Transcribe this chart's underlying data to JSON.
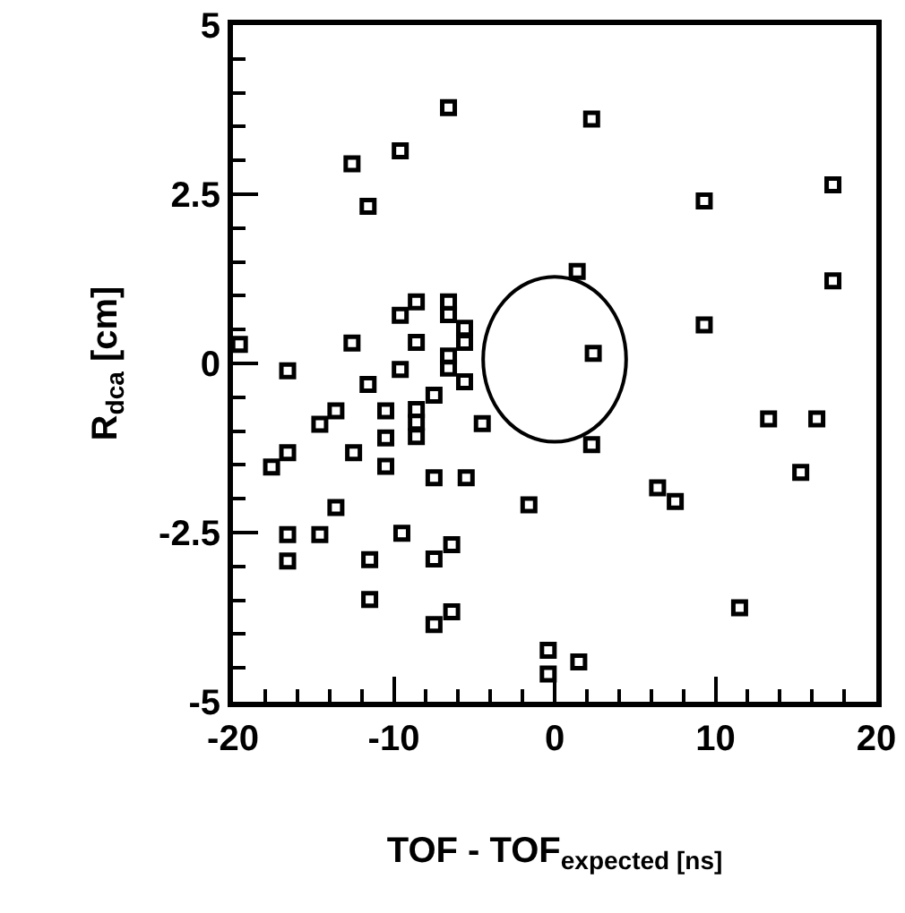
{
  "chart_data": {
    "type": "scatter",
    "xlabel": "TOF - TOF$_{expected [ns]}$",
    "ylabel": "R$_{dca}$ [cm]",
    "xlim": [
      -20,
      20
    ],
    "ylim": [
      -5,
      5
    ],
    "xticks": [
      -20,
      {
        "value": -18,
        "label": null
      },
      {
        "value": -16,
        "label": null
      },
      {
        "value": -14,
        "label": null
      },
      {
        "value": -12,
        "label": null
      },
      -10,
      {
        "value": -8,
        "label": null
      },
      {
        "value": -6,
        "label": null
      },
      {
        "value": -4,
        "label": null
      },
      {
        "value": -2,
        "label": null
      },
      0,
      {
        "value": 2,
        "label": null
      },
      {
        "value": 4,
        "label": null
      },
      {
        "value": 6,
        "label": null
      },
      {
        "value": 8,
        "label": null
      },
      10,
      {
        "value": 12,
        "label": null
      },
      {
        "value": 14,
        "label": null
      },
      {
        "value": 16,
        "label": null
      },
      {
        "value": 18,
        "label": null
      },
      20
    ],
    "yticks": [
      -5,
      {
        "value": -4.5,
        "label": null
      },
      {
        "value": -4,
        "label": null
      },
      {
        "value": -3.5,
        "label": null
      },
      {
        "value": -3,
        "label": null
      },
      -2.5,
      {
        "value": -2,
        "label": null
      },
      {
        "value": -1.5,
        "label": null
      },
      {
        "value": -1,
        "label": null
      },
      {
        "value": -0.5,
        "label": null
      },
      0,
      {
        "value": 0.5,
        "label": null
      },
      {
        "value": 1,
        "label": null
      },
      {
        "value": 1.5,
        "label": null
      },
      {
        "value": 2,
        "label": null
      },
      2.5,
      {
        "value": 3,
        "label": null
      },
      {
        "value": 3.5,
        "label": null
      },
      {
        "value": 4,
        "label": null
      },
      {
        "value": 4.5,
        "label": null
      },
      5
    ],
    "grid": false,
    "series": [
      {
        "type": "scatter",
        "marker": "square",
        "color": "#000000",
        "x": [
          -6.6,
          -9.6,
          -12.6,
          -11.6,
          -8.6,
          -9.6,
          -6.6,
          -6.6,
          -5.6,
          -5.6,
          -19.6,
          -12.6,
          -8.6,
          -6.6,
          -6.6,
          -16.6,
          -9.6,
          -11.6,
          -5.6,
          -7.5,
          -13.6,
          -14.6,
          -10.5,
          -8.6,
          -8.6,
          -8.6,
          -10.5,
          -4.5,
          -16.6,
          -17.6,
          -12.5,
          -10.5,
          -7.5,
          -5.5,
          -13.6,
          -1.6,
          -16.6,
          -14.6,
          -9.5,
          -16.6,
          -11.5,
          -7.5,
          -6.4,
          -11.5,
          -7.5,
          -6.4,
          2.3,
          9.3,
          17.3,
          1.4,
          17.3,
          9.3,
          2.4,
          13.3,
          16.3,
          2.3,
          15.3,
          6.4,
          7.5,
          11.5,
          -0.4,
          -0.4,
          1.5
        ],
        "values": [
          3.78,
          3.14,
          2.95,
          2.32,
          0.91,
          0.71,
          0.91,
          0.72,
          0.52,
          0.31,
          0.28,
          0.3,
          0.31,
          0.11,
          -0.07,
          -0.11,
          -0.09,
          -0.31,
          -0.27,
          -0.47,
          -0.7,
          -0.9,
          -0.7,
          -0.68,
          -0.87,
          -1.08,
          -1.1,
          -0.89,
          -1.32,
          -1.53,
          -1.32,
          -1.52,
          -1.69,
          -1.69,
          -2.13,
          -2.09,
          -2.53,
          -2.53,
          -2.51,
          -2.92,
          -2.9,
          -2.89,
          -2.68,
          -3.49,
          -3.86,
          -3.67,
          3.61,
          2.4,
          2.64,
          1.36,
          1.22,
          0.57,
          0.15,
          -0.82,
          -0.82,
          -1.2,
          -1.61,
          -1.84,
          -2.04,
          -3.61,
          -4.24,
          -4.59,
          -4.41
        ]
      }
    ]
  }
}
